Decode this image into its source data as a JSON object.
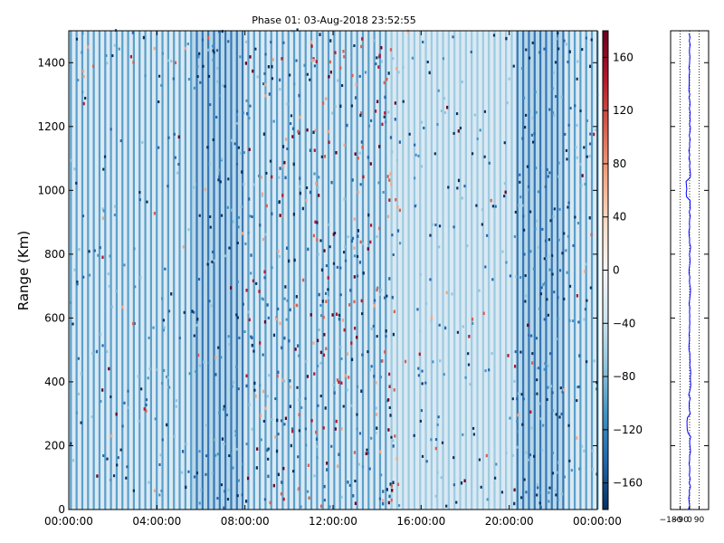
{
  "colors": {
    "colormap": [
      "#053061",
      "#2166ac",
      "#4393c3",
      "#92c5de",
      "#d1e5f0",
      "#f7f7f7",
      "#fddbc7",
      "#f4a582",
      "#d6604d",
      "#b2182b",
      "#67001f"
    ],
    "profile_line": "#0000ff"
  },
  "chart_data": [
    {
      "type": "heatmap",
      "title": "Phase 01: 03-Aug-2018 23:52:55",
      "xlabel": "",
      "ylabel": "Range (Km)",
      "x_ticks": [
        "00:00:00",
        "04:00:00",
        "08:00:00",
        "12:00:00",
        "16:00:00",
        "20:00:00",
        "00:00:00"
      ],
      "x_range_hours": [
        0,
        24
      ],
      "y_ticks": [
        0,
        200,
        400,
        600,
        800,
        1000,
        1200,
        1400
      ],
      "ylim": [
        0,
        1500
      ],
      "colorbar": {
        "vmin": -180,
        "vmax": 180,
        "ticks": [
          160,
          120,
          80,
          40,
          0,
          -40,
          -80,
          -120,
          -160
        ]
      },
      "time_bands": [
        {
          "start_hour": 0.0,
          "end_hour": 5.6,
          "level": 0.3
        },
        {
          "start_hour": 5.6,
          "end_hour": 7.9,
          "level": 0.75
        },
        {
          "start_hour": 7.9,
          "end_hour": 9.5,
          "level": 0.45
        },
        {
          "start_hour": 9.5,
          "end_hour": 14.5,
          "level": 0.35
        },
        {
          "start_hour": 14.5,
          "end_hour": 20.3,
          "level": 0.25
        },
        {
          "start_hour": 20.3,
          "end_hour": 22.5,
          "level": 0.85
        },
        {
          "start_hour": 22.5,
          "end_hour": 24.0,
          "level": 0.45
        }
      ]
    },
    {
      "type": "line",
      "x_ticks": [
        "−180",
        "−90",
        "0",
        "90"
      ],
      "xlim": [
        -180,
        180
      ],
      "ylim": [
        0,
        1500
      ],
      "series": [
        {
          "values_x": [
            -5,
            3,
            -2,
            4,
            -20,
            2,
            -3,
            5,
            1,
            -4,
            2,
            -2,
            3,
            -1,
            4,
            -3,
            2,
            -30,
            1,
            -2,
            3,
            -1,
            0,
            2
          ],
          "values_y": [
            0,
            60,
            120,
            180,
            240,
            300,
            360,
            380,
            440,
            500,
            560,
            620,
            680,
            740,
            800,
            860,
            920,
            980,
            1040,
            1100,
            1160,
            1220,
            1300,
            1500
          ]
        }
      ]
    }
  ]
}
